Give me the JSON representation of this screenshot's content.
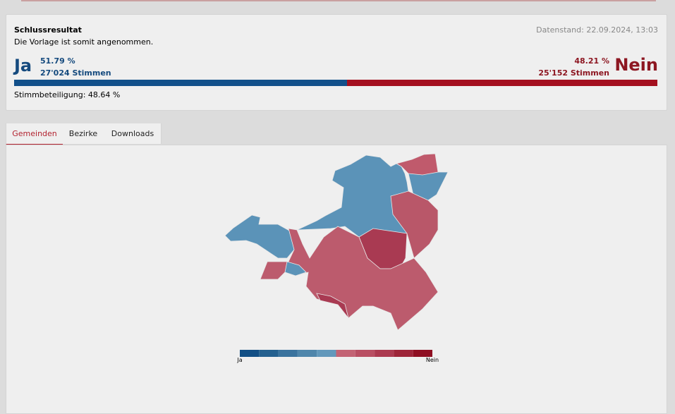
{
  "result": {
    "title": "Schlussresultat",
    "subtitle": "Die Vorlage ist somit angenommen.",
    "timestamp": "Datenstand: 22.09.2024, 13:03",
    "ja": {
      "label": "Ja",
      "percent": {
        "value": 51.79,
        "label": "51.79 %"
      },
      "votes": "27'024 Stimmen"
    },
    "nein": {
      "label": "Nein",
      "percent": {
        "value": 48.21,
        "label": "48.21 %"
      },
      "votes": "25'152 Stimmen"
    },
    "turnout": "Stimmbeteiligung: 48.64 %"
  },
  "tabs": [
    "Gemeinden",
    "Bezirke",
    "Downloads"
  ],
  "legend": {
    "min_label": "Ja",
    "max_label": "Nein"
  }
}
